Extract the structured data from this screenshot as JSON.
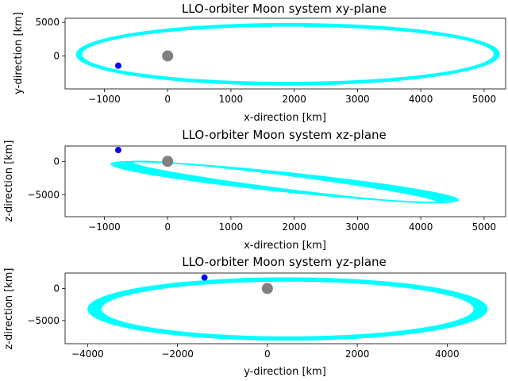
{
  "chart_data": [
    {
      "type": "scatter",
      "title": "LLO-orbiter Moon system xy-plane",
      "xlabel": "x-direction [km]",
      "ylabel": "y-direction [km]",
      "xlim": [
        -1620,
        5340
      ],
      "ylim": [
        -4900,
        5600
      ],
      "xticks": [
        -1000,
        0,
        1000,
        2000,
        3000,
        4000,
        5000
      ],
      "xtick_labels": [
        "−1000",
        "0",
        "1000",
        "2000",
        "3000",
        "4000",
        "5000"
      ],
      "yticks": [
        0,
        5000
      ],
      "ytick_labels": [
        "0",
        "5000"
      ],
      "orbit": {
        "color": "#00ffff",
        "center": [
          1900,
          250
        ],
        "a": [
          3260,
          3340
        ],
        "b": [
          4180,
          4560
        ],
        "tilt": -0.01
      },
      "spacecraft": {
        "x": -780,
        "y": -1450,
        "color": "#0000ff"
      },
      "moon": {
        "x": 0,
        "y": 0,
        "color": "#808080"
      }
    },
    {
      "type": "scatter",
      "title": "LLO-orbiter Moon system xz-plane",
      "xlabel": "x-direction [km]",
      "ylabel": "z-direction [km]",
      "xlim": [
        -1620,
        5340
      ],
      "ylim": [
        -8300,
        2300
      ],
      "xticks": [
        -1000,
        0,
        1000,
        2000,
        3000,
        4000,
        5000
      ],
      "xtick_labels": [
        "−1000",
        "0",
        "1000",
        "2000",
        "3000",
        "4000",
        "5000"
      ],
      "yticks": [
        -5000,
        0
      ],
      "ytick_labels": [
        "−5000",
        "0"
      ],
      "orbit": {
        "color": "#00ffff",
        "center": [
          1850,
          -3100
        ],
        "a": [
          3860,
          3980
        ],
        "b": [
          650,
          1000
        ],
        "tilt": -0.92
      },
      "spacecraft": {
        "x": -780,
        "y": 1700,
        "color": "#0000ff"
      },
      "moon": {
        "x": 0,
        "y": 0,
        "color": "#808080"
      }
    },
    {
      "type": "scatter",
      "title": "LLO-orbiter Moon system yz-plane",
      "xlabel": "y-direction [km]",
      "ylabel": "z-direction [km]",
      "xlim": [
        -4500,
        5300
      ],
      "ylim": [
        -8600,
        2400
      ],
      "xticks": [
        -4000,
        -2000,
        0,
        2000,
        4000
      ],
      "xtick_labels": [
        "−4000",
        "−2000",
        "0",
        "2000",
        "4000"
      ],
      "yticks": [
        -5000,
        0
      ],
      "ytick_labels": [
        "−5000",
        "0"
      ],
      "orbit": {
        "color": "#00ffff",
        "center": [
          450,
          -3200
        ],
        "a": [
          4150,
          4440
        ],
        "b": [
          4350,
          4840
        ],
        "tilt": -0.005
      },
      "spacecraft": {
        "x": -1400,
        "y": 1700,
        "color": "#0000ff"
      },
      "moon": {
        "x": 0,
        "y": 0,
        "color": "#808080"
      }
    }
  ]
}
